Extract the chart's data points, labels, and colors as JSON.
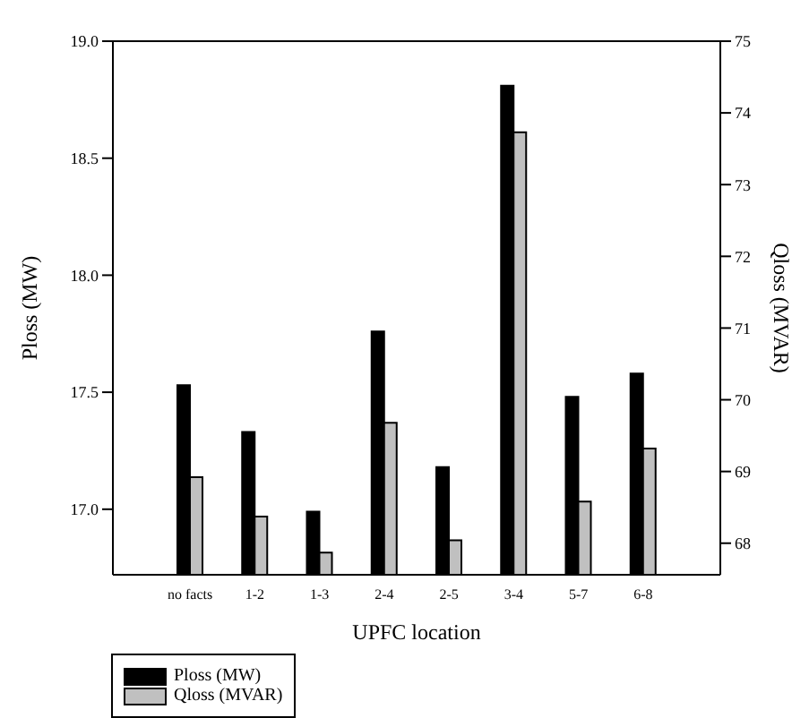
{
  "chart_data": {
    "type": "bar",
    "xlabel": "UPFC location",
    "ylabel": "Ploss (MW)",
    "y2label": "Qloss (MVAR)",
    "categories": [
      "no facts",
      "1-2",
      "1-3",
      "2-4",
      "2-5",
      "3-4",
      "5-7",
      "6-8"
    ],
    "series": [
      {
        "name": "Ploss (MW)",
        "color": "#000000",
        "values": [
          17.53,
          17.33,
          16.99,
          17.76,
          17.18,
          18.81,
          17.48,
          17.58
        ]
      },
      {
        "name": "Qloss  (MVAR)",
        "color": "#c0c0c0",
        "axis": "y2",
        "values": [
          68.92,
          68.37,
          67.87,
          69.68,
          68.04,
          73.73,
          68.58,
          69.32
        ]
      }
    ],
    "ylim": [
      16.72,
      19.0
    ],
    "yticks": [
      {
        "value": 17.0,
        "label": "17.0"
      },
      {
        "value": 17.5,
        "label": "17.5"
      },
      {
        "value": 18.0,
        "label": "18.0"
      },
      {
        "value": 18.5,
        "label": "18.5"
      },
      {
        "value": 19.0,
        "label": "19.0"
      }
    ],
    "y2lim": [
      67.56,
      75
    ],
    "y2ticks": [
      68,
      69,
      70,
      71,
      72,
      73,
      74,
      75
    ],
    "grid": false,
    "legend": "bottom left"
  }
}
